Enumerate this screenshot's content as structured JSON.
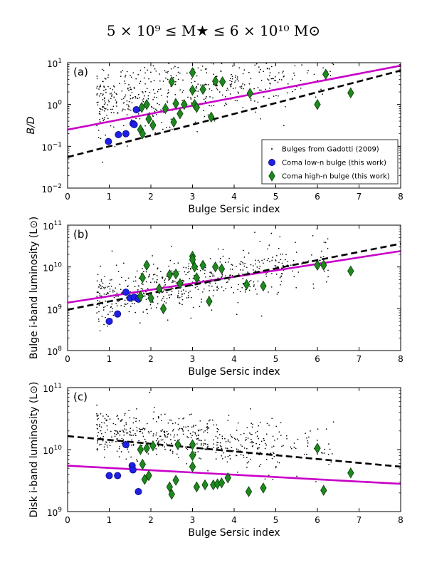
{
  "figure_title": "5 × 10⁹ ≤ M★ ≤ 6 × 10¹⁰ M⊙",
  "colors": {
    "scatter": "#000000",
    "low_n": "#1f1fe6",
    "low_n_edge": "#0b0b80",
    "high_n": "#1e8a1e",
    "high_n_edge": "#0a3a0a",
    "fit_magenta": "#c800c8",
    "fit_dashed": "#000000"
  },
  "chart_data": [
    {
      "type": "scatter",
      "panel_label": "(a)",
      "xlabel": "Bulge Sersic index",
      "ylabel": "B/D",
      "yscale": "log",
      "xlim": [
        0,
        8
      ],
      "ylim": [
        0.01,
        10
      ],
      "xticks": [
        0,
        1,
        2,
        3,
        4,
        5,
        6,
        7,
        8
      ],
      "yticks": [
        {
          "v": 0.01,
          "base": "10",
          "exp": "−2"
        },
        {
          "v": 0.1,
          "base": "10",
          "exp": "−1"
        },
        {
          "v": 1,
          "base": "10",
          "exp": "0"
        },
        {
          "v": 10,
          "base": "10",
          "exp": "1"
        }
      ],
      "legend": {
        "position": "lower-right",
        "entries": [
          {
            "label": "Bulges from Gadotti (2009)",
            "marker": "dot"
          },
          {
            "label": "Coma low-n bulge (this work)",
            "marker": "circle"
          },
          {
            "label": "Coma high-n bulge (this work)",
            "marker": "diamond"
          }
        ]
      },
      "background": {
        "x_range": [
          0.7,
          5.2
        ],
        "center": 0.32,
        "slope": 0.14,
        "scatter_dex": 0.42,
        "count": 520
      },
      "series": [
        {
          "name": "Coma low-n bulge (this work)",
          "marker": "circle",
          "points": [
            [
              0.98,
              0.13
            ],
            [
              1.22,
              0.19
            ],
            [
              1.4,
              0.2
            ],
            [
              1.57,
              0.35
            ],
            [
              1.6,
              0.33
            ],
            [
              1.65,
              0.75
            ]
          ]
        },
        {
          "name": "Coma high-n bulge (this work)",
          "marker": "diamond",
          "points": [
            [
              1.75,
              0.25
            ],
            [
              1.78,
              0.85
            ],
            [
              1.8,
              0.2
            ],
            [
              1.9,
              1.0
            ],
            [
              1.95,
              0.45
            ],
            [
              2.05,
              0.32
            ],
            [
              2.35,
              0.8
            ],
            [
              2.5,
              3.5
            ],
            [
              2.55,
              0.38
            ],
            [
              2.6,
              1.05
            ],
            [
              2.7,
              0.6
            ],
            [
              2.8,
              1.0
            ],
            [
              3.0,
              5.8
            ],
            [
              3.0,
              2.2
            ],
            [
              3.05,
              1.0
            ],
            [
              3.1,
              0.85
            ],
            [
              3.25,
              2.3
            ],
            [
              3.45,
              0.5
            ],
            [
              3.55,
              3.6
            ],
            [
              3.72,
              3.5
            ],
            [
              4.38,
              1.85
            ],
            [
              6.0,
              1.0
            ],
            [
              6.2,
              5.3
            ],
            [
              6.8,
              1.9
            ]
          ]
        },
        {
          "name": "magenta fit",
          "style": "solid",
          "points": [
            [
              0,
              0.25
            ],
            [
              8,
              8.5
            ]
          ]
        },
        {
          "name": "dashed fit",
          "style": "dashed",
          "points": [
            [
              0,
              0.055
            ],
            [
              8,
              6.5
            ]
          ]
        }
      ]
    },
    {
      "type": "scatter",
      "panel_label": "(b)",
      "xlabel": "Bulge Sersic index",
      "ylabel": "Bulge i-band luminosity (L⊙)",
      "yscale": "log",
      "xlim": [
        0,
        8
      ],
      "ylim": [
        100000000.0,
        100000000000.0
      ],
      "xticks": [
        0,
        1,
        2,
        3,
        4,
        5,
        6,
        7,
        8
      ],
      "yticks": [
        {
          "v": 100000000.0,
          "base": "10",
          "exp": "8"
        },
        {
          "v": 1000000000.0,
          "base": "10",
          "exp": "9"
        },
        {
          "v": 10000000000.0,
          "base": "10",
          "exp": "10"
        },
        {
          "v": 100000000000.0,
          "base": "10",
          "exp": "11"
        }
      ],
      "background": {
        "x_range": [
          0.7,
          5.2
        ],
        "center": 9.55,
        "slope": 0.16,
        "scatter_dex": 0.32,
        "count": 520
      },
      "series": [
        {
          "name": "Coma low-n bulge (this work)",
          "marker": "circle",
          "points": [
            [
              1.0,
              500000000.0
            ],
            [
              1.2,
              750000000.0
            ],
            [
              1.4,
              2500000000.0
            ],
            [
              1.5,
              1800000000.0
            ],
            [
              1.6,
              1900000000.0
            ],
            [
              1.7,
              1700000000.0
            ]
          ]
        },
        {
          "name": "Coma high-n bulge (this work)",
          "marker": "diamond",
          "points": [
            [
              1.75,
              2000000000.0
            ],
            [
              1.8,
              5500000000.0
            ],
            [
              1.9,
              11000000000.0
            ],
            [
              2.0,
              1800000000.0
            ],
            [
              2.2,
              3000000000.0
            ],
            [
              2.3,
              1000000000.0
            ],
            [
              2.45,
              6500000000.0
            ],
            [
              2.6,
              6800000000.0
            ],
            [
              2.7,
              4000000000.0
            ],
            [
              3.0,
              18000000000.0
            ],
            [
              3.0,
              15000000000.0
            ],
            [
              3.05,
              10000000000.0
            ],
            [
              3.1,
              5500000000.0
            ],
            [
              3.25,
              11000000000.0
            ],
            [
              3.4,
              1500000000.0
            ],
            [
              3.55,
              10000000000.0
            ],
            [
              3.7,
              9000000000.0
            ],
            [
              4.3,
              3800000000.0
            ],
            [
              4.7,
              3500000000.0
            ],
            [
              6.0,
              11000000000.0
            ],
            [
              6.15,
              11000000000.0
            ],
            [
              6.8,
              8000000000.0
            ]
          ]
        },
        {
          "name": "magenta fit",
          "style": "solid",
          "points": [
            [
              0,
              1400000000.0
            ],
            [
              8,
              24000000000.0
            ]
          ]
        },
        {
          "name": "dashed fit",
          "style": "dashed",
          "points": [
            [
              0,
              950000000.0
            ],
            [
              8,
              36000000000.0
            ]
          ]
        }
      ]
    },
    {
      "type": "scatter",
      "panel_label": "(c)",
      "xlabel": "Bulge Sersic index",
      "ylabel": "Disk i-band luminosity (L⊙)",
      "yscale": "log",
      "xlim": [
        0,
        8
      ],
      "ylim": [
        1000000000.0,
        100000000000.0
      ],
      "xticks": [
        0,
        1,
        2,
        3,
        4,
        5,
        6,
        7,
        8
      ],
      "yticks": [
        {
          "v": 1000000000.0,
          "base": "10",
          "exp": "9"
        },
        {
          "v": 10000000000.0,
          "base": "10",
          "exp": "10"
        },
        {
          "v": 100000000000.0,
          "base": "10",
          "exp": "11"
        }
      ],
      "background": {
        "x_range": [
          0.7,
          5.2
        ],
        "center": 10.2,
        "slope": -0.06,
        "scatter_dex": 0.2,
        "count": 520
      },
      "series": [
        {
          "name": "Coma low-n bulge (this work)",
          "marker": "circle",
          "points": [
            [
              1.0,
              3800000000.0
            ],
            [
              1.2,
              3800000000.0
            ],
            [
              1.4,
              12000000000.0
            ],
            [
              1.55,
              5500000000.0
            ],
            [
              1.57,
              4700000000.0
            ],
            [
              1.7,
              2100000000.0
            ]
          ]
        },
        {
          "name": "Coma high-n bulge (this work)",
          "marker": "diamond",
          "points": [
            [
              1.75,
              10000000000.0
            ],
            [
              1.8,
              5800000000.0
            ],
            [
              1.85,
              3300000000.0
            ],
            [
              1.9,
              10500000000.0
            ],
            [
              1.95,
              3800000000.0
            ],
            [
              2.05,
              11500000000.0
            ],
            [
              2.45,
              2500000000.0
            ],
            [
              2.5,
              1900000000.0
            ],
            [
              2.6,
              3200000000.0
            ],
            [
              2.65,
              12000000000.0
            ],
            [
              3.0,
              12000000000.0
            ],
            [
              3.0,
              8000000000.0
            ],
            [
              3.0,
              5300000000.0
            ],
            [
              3.1,
              2500000000.0
            ],
            [
              3.3,
              2700000000.0
            ],
            [
              3.5,
              2700000000.0
            ],
            [
              3.6,
              2800000000.0
            ],
            [
              3.7,
              2900000000.0
            ],
            [
              3.85,
              3500000000.0
            ],
            [
              4.35,
              2100000000.0
            ],
            [
              4.7,
              2400000000.0
            ],
            [
              6.0,
              10500000000.0
            ],
            [
              6.15,
              2200000000.0
            ],
            [
              6.8,
              4200000000.0
            ]
          ]
        },
        {
          "name": "magenta fit",
          "style": "solid",
          "points": [
            [
              0,
              5500000000.0
            ],
            [
              8,
              2800000000.0
            ]
          ]
        },
        {
          "name": "dashed fit",
          "style": "dashed",
          "points": [
            [
              0,
              16500000000.0
            ],
            [
              8,
              5300000000.0
            ]
          ]
        }
      ]
    }
  ]
}
